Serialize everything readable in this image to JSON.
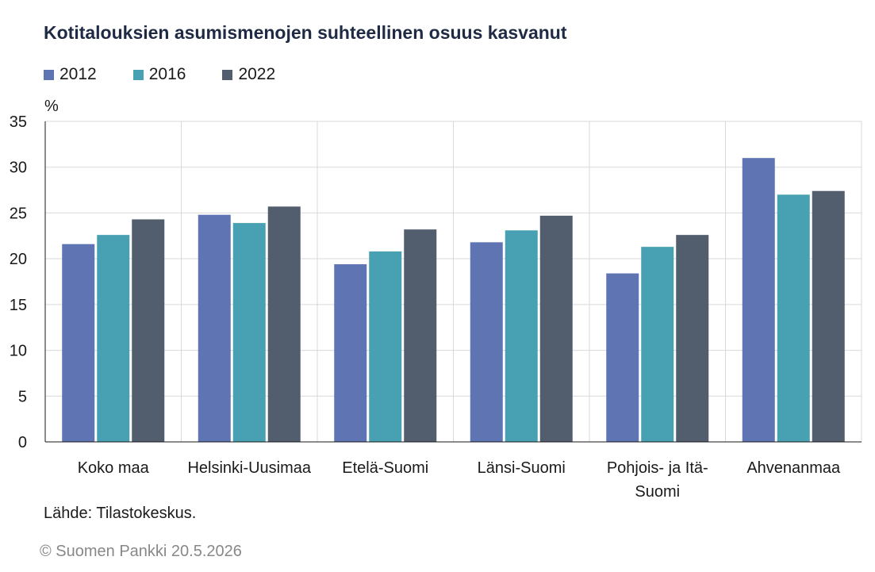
{
  "title": "Kotitalouksien asumismenojen suhteellinen osuus kasvanut",
  "source": "Lähde: Tilastokeskus.",
  "copyright": "© Suomen Pankki 20.5.2026",
  "chart_data": {
    "type": "bar",
    "title": "Kotitalouksien asumismenojen suhteellinen osuus kasvanut",
    "ylabel": "%",
    "xlabel": "",
    "ylim": [
      0,
      35
    ],
    "yticks": [
      0,
      5,
      10,
      15,
      20,
      25,
      30,
      35
    ],
    "grid": true,
    "legend_position": "top-left",
    "categories": [
      [
        "Koko maa"
      ],
      [
        "Helsinki-Uusimaa"
      ],
      [
        "Etelä-Suomi"
      ],
      [
        "Länsi-Suomi"
      ],
      [
        "Pohjois- ja Itä-",
        "Suomi"
      ],
      [
        "Ahvenanmaa"
      ]
    ],
    "series": [
      {
        "name": "2012",
        "color": "#5f74b3",
        "values": [
          21.6,
          24.8,
          19.4,
          21.8,
          18.4,
          31.0
        ]
      },
      {
        "name": "2016",
        "color": "#48a1b2",
        "values": [
          22.6,
          23.9,
          20.8,
          23.1,
          21.3,
          27.0
        ]
      },
      {
        "name": "2022",
        "color": "#525d6e",
        "values": [
          24.3,
          25.7,
          23.2,
          24.7,
          22.6,
          27.4
        ]
      }
    ]
  }
}
